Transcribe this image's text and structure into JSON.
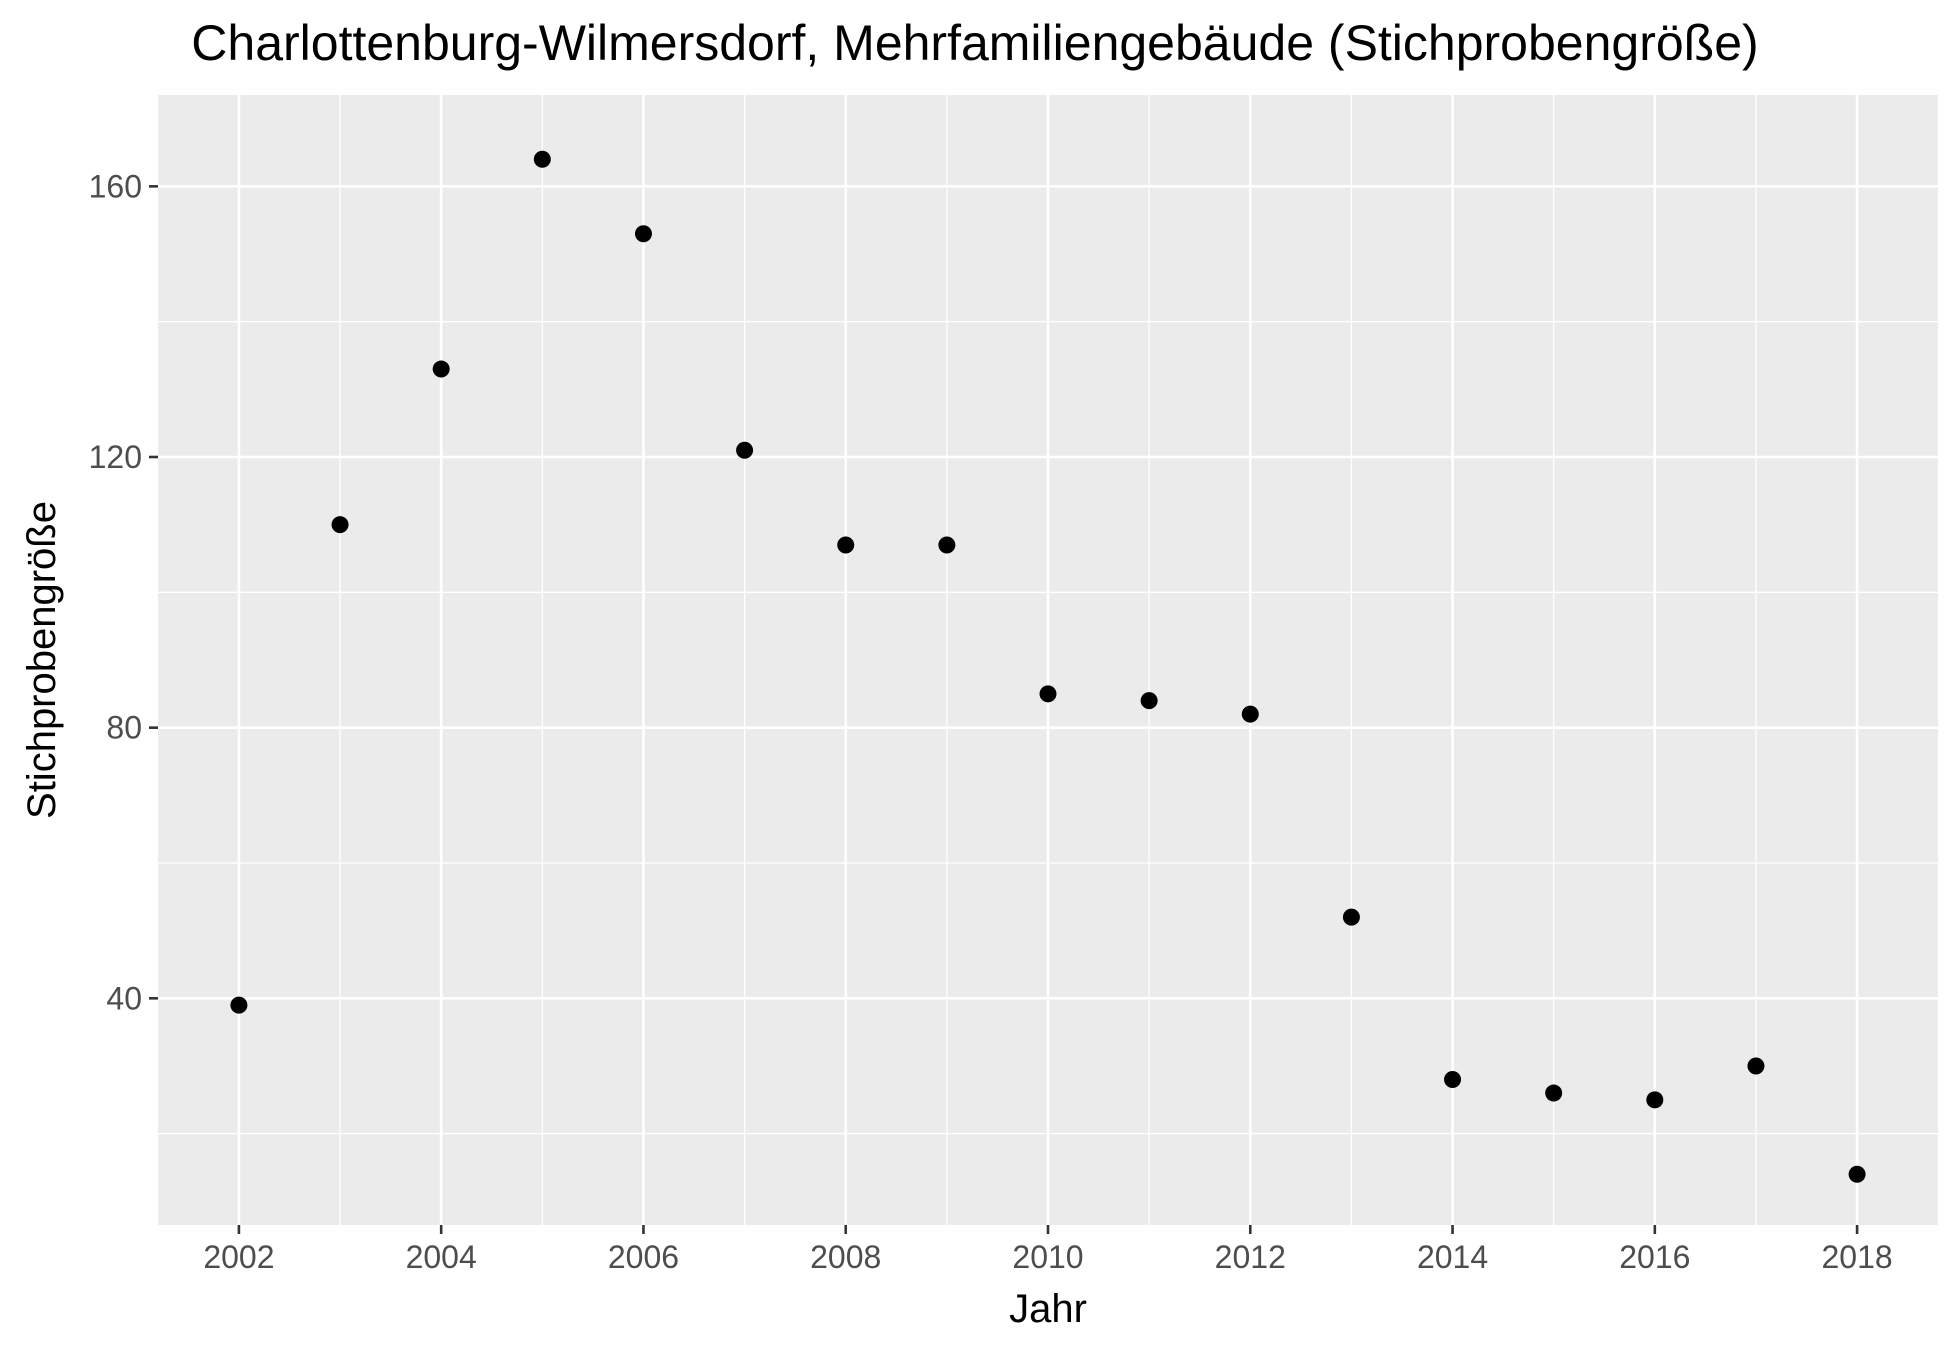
{
  "chart_data": {
    "type": "scatter",
    "title": "Charlottenburg-Wilmersdorf, Mehrfamiliengebäude (Stichprobengröße)",
    "xlabel": "Jahr",
    "ylabel": "Stichprobengröße",
    "xlim": [
      2001.2,
      2018.8
    ],
    "ylim": [
      6.5,
      173.5
    ],
    "x_ticks": [
      2002,
      2004,
      2006,
      2008,
      2010,
      2012,
      2014,
      2016,
      2018
    ],
    "x_tick_labels": [
      "2002",
      "2004",
      "2006",
      "2008",
      "2010",
      "2012",
      "2014",
      "2016",
      "2018"
    ],
    "y_ticks": [
      40,
      80,
      120,
      160
    ],
    "y_tick_labels": [
      "40",
      "80",
      "120",
      "160"
    ],
    "grid": true,
    "legend": "none",
    "colors": {
      "panel": "#ebebeb",
      "grid": "#ffffff",
      "point": "#000000",
      "tick_text": "#4d4d4d"
    },
    "x": [
      2002,
      2003,
      2004,
      2005,
      2006,
      2007,
      2008,
      2009,
      2010,
      2011,
      2012,
      2013,
      2014,
      2015,
      2016,
      2017,
      2018
    ],
    "y": [
      39,
      110,
      133,
      164,
      153,
      121,
      107,
      107,
      85,
      84,
      82,
      52,
      28,
      26,
      25,
      30,
      14
    ]
  }
}
